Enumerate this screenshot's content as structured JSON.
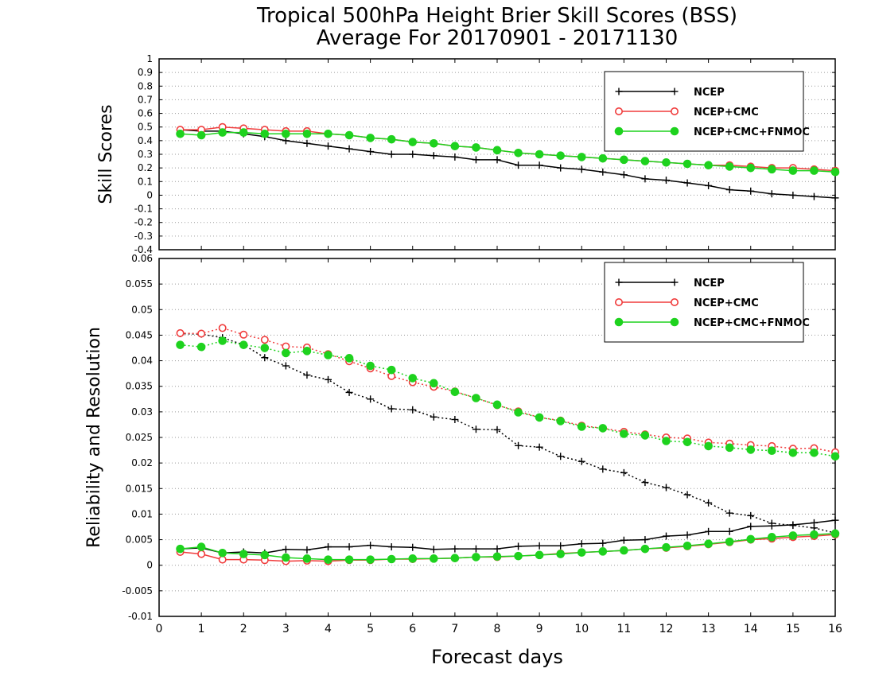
{
  "title_line1": "Tropical 500hPa Height Brier Skill Scores (BSS)",
  "title_line2": "Average For 20170901 - 20171130",
  "xlabel": "Forecast days",
  "colors": {
    "NCEP": "#000000",
    "NCEP+CMC": "#f03c3c",
    "NCEP+CMC+FNMOC": "#1ed21e"
  },
  "chart_data": [
    {
      "type": "line",
      "ylabel": "Skill Scores",
      "xlim": [
        0,
        16
      ],
      "ylim": [
        -0.4,
        1
      ],
      "x_ticks": [
        0,
        1,
        2,
        3,
        4,
        5,
        6,
        7,
        8,
        9,
        10,
        11,
        12,
        13,
        14,
        15,
        16
      ],
      "y_ticks": [
        "-0.4",
        "-0.3",
        "-0.2",
        "-0.1",
        "0",
        "0.1",
        "0.2",
        "0.3",
        "0.4",
        "0.5",
        "0.6",
        "0.7",
        "0.8",
        "0.9",
        "1"
      ],
      "grid": true,
      "legend_position": "top-right",
      "x": [
        0.5,
        1,
        1.5,
        2,
        2.5,
        3,
        3.5,
        4,
        4.5,
        5,
        5.5,
        6,
        6.5,
        7,
        7.5,
        8,
        8.5,
        9,
        9.5,
        10,
        10.5,
        11,
        11.5,
        12,
        12.5,
        13,
        13.5,
        14,
        14.5,
        15,
        15.5,
        16
      ],
      "series": [
        {
          "name": "NCEP",
          "marker": "plus",
          "values": [
            0.48,
            0.47,
            0.47,
            0.45,
            0.43,
            0.4,
            0.38,
            0.36,
            0.34,
            0.32,
            0.3,
            0.3,
            0.29,
            0.28,
            0.26,
            0.26,
            0.22,
            0.22,
            0.2,
            0.19,
            0.17,
            0.15,
            0.12,
            0.11,
            0.09,
            0.07,
            0.04,
            0.03,
            0.01,
            0.0,
            -0.01,
            -0.02
          ]
        },
        {
          "name": "NCEP+CMC",
          "marker": "open-circle",
          "values": [
            0.48,
            0.48,
            0.5,
            0.49,
            0.48,
            0.47,
            0.47,
            0.45,
            0.44,
            0.42,
            0.41,
            0.39,
            0.38,
            0.36,
            0.35,
            0.33,
            0.31,
            0.3,
            0.29,
            0.28,
            0.27,
            0.26,
            0.25,
            0.24,
            0.23,
            0.22,
            0.22,
            0.21,
            0.2,
            0.2,
            0.19,
            0.18
          ]
        },
        {
          "name": "NCEP+CMC+FNMOC",
          "marker": "filled-circle",
          "values": [
            0.45,
            0.44,
            0.46,
            0.46,
            0.45,
            0.45,
            0.45,
            0.45,
            0.44,
            0.42,
            0.41,
            0.39,
            0.38,
            0.36,
            0.35,
            0.33,
            0.31,
            0.3,
            0.29,
            0.28,
            0.27,
            0.26,
            0.25,
            0.24,
            0.23,
            0.22,
            0.21,
            0.2,
            0.19,
            0.18,
            0.18,
            0.17
          ]
        }
      ]
    },
    {
      "type": "line",
      "ylabel": "Reliability and Resolution",
      "xlim": [
        0,
        16
      ],
      "ylim": [
        -0.01,
        0.06
      ],
      "x_ticks": [
        0,
        1,
        2,
        3,
        4,
        5,
        6,
        7,
        8,
        9,
        10,
        11,
        12,
        13,
        14,
        15,
        16
      ],
      "y_ticks": [
        "-0.01",
        "-0.005",
        "0",
        "0.005",
        "0.01",
        "0.015",
        "0.02",
        "0.025",
        "0.03",
        "0.035",
        "0.04",
        "0.045",
        "0.05",
        "0.055",
        "0.06"
      ],
      "grid": true,
      "legend_position": "top-right",
      "x": [
        0.5,
        1,
        1.5,
        2,
        2.5,
        3,
        3.5,
        4,
        4.5,
        5,
        5.5,
        6,
        6.5,
        7,
        7.5,
        8,
        8.5,
        9,
        9.5,
        10,
        10.5,
        11,
        11.5,
        12,
        12.5,
        13,
        13.5,
        14,
        14.5,
        15,
        15.5,
        16
      ],
      "series": [
        {
          "name": "NCEP",
          "component": "resolution",
          "line_style": "dotted",
          "marker": "plus",
          "values": [
            0.0453,
            0.0452,
            0.0445,
            0.0431,
            0.0406,
            0.039,
            0.0372,
            0.0363,
            0.0338,
            0.0325,
            0.0306,
            0.0304,
            0.029,
            0.0285,
            0.0266,
            0.0265,
            0.0234,
            0.0231,
            0.0213,
            0.0203,
            0.0188,
            0.0181,
            0.0162,
            0.0152,
            0.0138,
            0.0122,
            0.0102,
            0.0097,
            0.0082,
            0.0078,
            0.0073,
            0.0063
          ]
        },
        {
          "name": "NCEP",
          "component": "reliability",
          "line_style": "solid",
          "marker": "plus",
          "values": [
            0.0032,
            0.0034,
            0.0024,
            0.0026,
            0.0024,
            0.0031,
            0.003,
            0.0036,
            0.0036,
            0.0039,
            0.0036,
            0.0035,
            0.0031,
            0.0032,
            0.0032,
            0.0032,
            0.0037,
            0.0038,
            0.0038,
            0.0042,
            0.0043,
            0.0049,
            0.005,
            0.0057,
            0.0059,
            0.0066,
            0.0066,
            0.0076,
            0.0077,
            0.0079,
            0.0083,
            0.0088
          ]
        },
        {
          "name": "NCEP+CMC",
          "component": "resolution",
          "line_style": "dotted",
          "marker": "open-circle",
          "values": [
            0.0454,
            0.0453,
            0.0464,
            0.0451,
            0.0441,
            0.0428,
            0.0426,
            0.0413,
            0.0399,
            0.0385,
            0.037,
            0.0358,
            0.0349,
            0.034,
            0.0327,
            0.0313,
            0.0301,
            0.0289,
            0.0283,
            0.0273,
            0.0268,
            0.0261,
            0.0256,
            0.025,
            0.0248,
            0.024,
            0.0238,
            0.0235,
            0.0233,
            0.0228,
            0.0229,
            0.0221
          ]
        },
        {
          "name": "NCEP+CMC",
          "component": "reliability",
          "line_style": "solid",
          "marker": "open-circle",
          "values": [
            0.0026,
            0.0022,
            0.0011,
            0.0011,
            0.001,
            0.0008,
            0.0009,
            0.0008,
            0.001,
            0.001,
            0.0012,
            0.0012,
            0.0013,
            0.0014,
            0.0016,
            0.0016,
            0.0018,
            0.002,
            0.0023,
            0.0025,
            0.0027,
            0.0029,
            0.0032,
            0.0034,
            0.0037,
            0.0041,
            0.0045,
            0.005,
            0.0052,
            0.0055,
            0.0057,
            0.006
          ]
        },
        {
          "name": "NCEP+CMC+FNMOC",
          "component": "resolution",
          "line_style": "dotted",
          "marker": "filled-circle",
          "values": [
            0.0431,
            0.0427,
            0.0439,
            0.0431,
            0.0425,
            0.0415,
            0.0419,
            0.0411,
            0.0405,
            0.039,
            0.0382,
            0.0366,
            0.0356,
            0.0339,
            0.0327,
            0.0314,
            0.0299,
            0.0289,
            0.0282,
            0.0271,
            0.0268,
            0.0257,
            0.0254,
            0.0243,
            0.0241,
            0.0233,
            0.023,
            0.0226,
            0.0224,
            0.022,
            0.022,
            0.0213
          ]
        },
        {
          "name": "NCEP+CMC+FNMOC",
          "component": "reliability",
          "line_style": "solid",
          "marker": "filled-circle",
          "values": [
            0.0032,
            0.0036,
            0.0024,
            0.0022,
            0.002,
            0.0015,
            0.0013,
            0.0011,
            0.0011,
            0.0011,
            0.0012,
            0.0013,
            0.0013,
            0.0014,
            0.0016,
            0.0017,
            0.0018,
            0.002,
            0.0022,
            0.0025,
            0.0027,
            0.0029,
            0.0032,
            0.0035,
            0.0038,
            0.0042,
            0.0046,
            0.0051,
            0.0055,
            0.0058,
            0.006,
            0.0062
          ]
        }
      ]
    }
  ]
}
